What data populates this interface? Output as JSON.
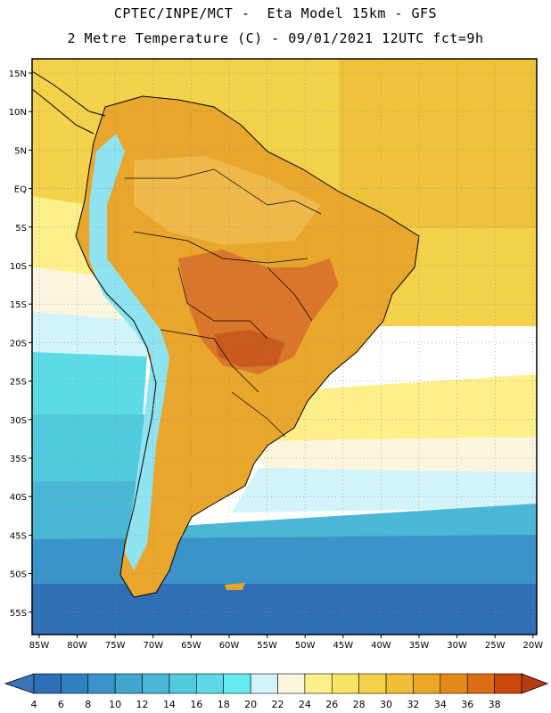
{
  "title": {
    "line1": "CPTEC/INPE/MCT -  Eta Model 15km - GFS",
    "line2": "2 Metre Temperature (C) - 09/01/2021 12UTC fct=9h"
  },
  "map": {
    "region": "South America",
    "variable": "2 Metre Temperature",
    "units": "C",
    "lat_labels": [
      "15N",
      "10N",
      "5N",
      "EQ",
      "5S",
      "10S",
      "15S",
      "20S",
      "25S",
      "30S",
      "35S",
      "40S",
      "45S",
      "50S",
      "55S"
    ],
    "lon_labels": [
      "85W",
      "80W",
      "75W",
      "70W",
      "65W",
      "60W",
      "55W",
      "50W",
      "45W",
      "40W",
      "35W",
      "30W",
      "25W",
      "20W"
    ]
  },
  "colorbar": {
    "labels": [
      "4",
      "6",
      "8",
      "10",
      "12",
      "14",
      "16",
      "18",
      "20",
      "22",
      "24",
      "26",
      "28",
      "30",
      "32",
      "34",
      "36",
      "38"
    ],
    "colors": [
      "#2f6fb5",
      "#2f82c0",
      "#3a94c9",
      "#42a6cf",
      "#4ab8d5",
      "#52cade",
      "#5cdbe6",
      "#66ecf0",
      "#d2f3fa",
      "#fcf5de",
      "#fdf08a",
      "#f9e363",
      "#f4d14a",
      "#efbf38",
      "#e9a723",
      "#e48a19",
      "#db6d12",
      "#c9480b"
    ],
    "low_color": "#3a74b8",
    "high_color": "#b83c10"
  }
}
